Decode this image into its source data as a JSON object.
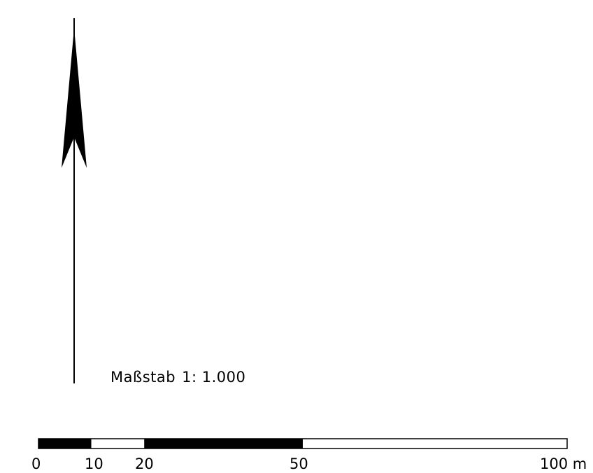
{
  "scale_label": {
    "prefix": "Maßstab",
    "ratio": "1: 1.000"
  },
  "north_arrow": {
    "icon": "north-arrow-icon"
  },
  "scale_bar": {
    "segments": [
      {
        "from": 0,
        "to": 10,
        "fill": "black"
      },
      {
        "from": 10,
        "to": 20,
        "fill": "white"
      },
      {
        "from": 20,
        "to": 50,
        "fill": "black"
      },
      {
        "from": 50,
        "to": 100,
        "fill": "white"
      }
    ],
    "ticks": [
      "0",
      "10",
      "20",
      "50",
      "100 m"
    ],
    "colors": {
      "dark": "#000000",
      "light": "#ffffff"
    }
  }
}
